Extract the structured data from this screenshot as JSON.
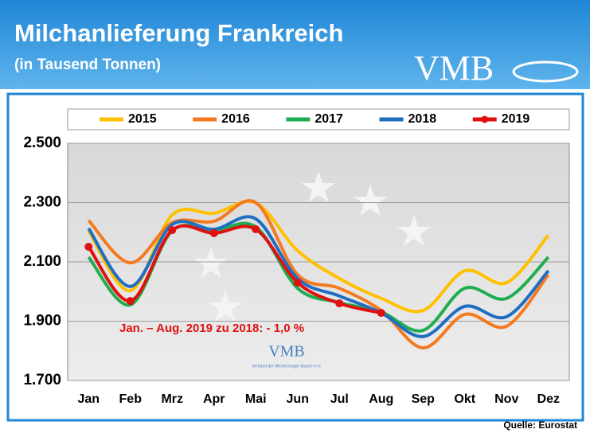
{
  "chart_data": {
    "type": "line",
    "title": "Milchanlieferung Frankreich",
    "subtitle": "(in Tausend Tonnen)",
    "logo_text": "VMB",
    "watermark_text": "VMB",
    "watermark_subtext": "Verband der Milcherzeuger Bayern e.V.",
    "annotation": "Jan. – Aug. 2019 zu 2018:  - 1,0 %",
    "source": "Quelle: Eurostat",
    "categories": [
      "Jan",
      "Feb",
      "Mrz",
      "Apr",
      "Mai",
      "Jun",
      "Jul",
      "Aug",
      "Sep",
      "Okt",
      "Nov",
      "Dez"
    ],
    "series": [
      {
        "name": "2015",
        "color": "#ffc000",
        "values": [
          2205,
          2003,
          2258,
          2264,
          2299,
          2138,
          2044,
          1977,
          1936,
          2070,
          2030,
          2190
        ]
      },
      {
        "name": "2016",
        "color": "#f47a20",
        "values": [
          2240,
          2097,
          2232,
          2237,
          2300,
          2057,
          2011,
          1936,
          1810,
          1923,
          1883,
          2057
        ]
      },
      {
        "name": "2017",
        "color": "#1fae4f",
        "values": [
          2116,
          1955,
          2205,
          2205,
          2218,
          2011,
          1963,
          1931,
          1869,
          2011,
          1977,
          2116
        ]
      },
      {
        "name": "2018",
        "color": "#1f6ec2",
        "values": [
          2213,
          2017,
          2226,
          2210,
          2245,
          2044,
          1985,
          1928,
          1848,
          1950,
          1915,
          2070
        ]
      },
      {
        "name": "2019",
        "color": "#e01010",
        "markers": true,
        "values": [
          2151,
          1968,
          2207,
          2197,
          2210,
          2030,
          1960,
          1928,
          null,
          null,
          null,
          null
        ]
      }
    ],
    "ylim": [
      1700,
      2500
    ],
    "yticks": [
      {
        "value": 1700,
        "label": "1.700"
      },
      {
        "value": 1900,
        "label": "1.900"
      },
      {
        "value": 2100,
        "label": "2.100"
      },
      {
        "value": 2300,
        "label": "2.300"
      },
      {
        "value": 2500,
        "label": "2.500"
      }
    ],
    "grid": true
  }
}
